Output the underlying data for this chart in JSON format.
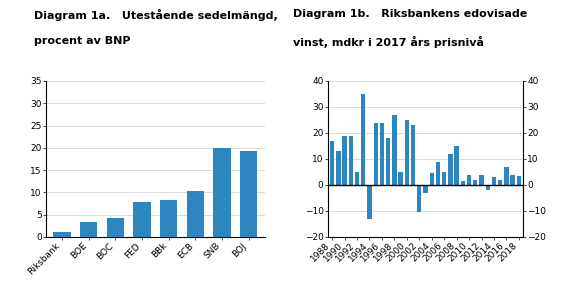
{
  "chart1a": {
    "title_line1": "Diagram 1a.   Utestående sedelmängd,",
    "title_line2": "procent av BNP",
    "categories": [
      "Riksbank",
      "BOE",
      "BOC",
      "FED",
      "BBk",
      "ECB",
      "SNB",
      "BOJ"
    ],
    "values": [
      1.1,
      3.3,
      4.3,
      7.9,
      8.4,
      10.4,
      20.0,
      19.2
    ],
    "bar_color": "#2e86c1",
    "ylim": [
      0,
      35
    ],
    "yticks": [
      0,
      5,
      10,
      15,
      20,
      25,
      30,
      35
    ]
  },
  "chart1b": {
    "title_line1": "Diagram 1b.   Riksbankens edovisade",
    "title_line2": "vinst, mdkr i 2017 års prisnivå",
    "years": [
      1988,
      1989,
      1990,
      1991,
      1992,
      1993,
      1994,
      1995,
      1996,
      1997,
      1998,
      1999,
      2000,
      2001,
      2002,
      2003,
      2004,
      2005,
      2006,
      2007,
      2008,
      2009,
      2010,
      2011,
      2012,
      2013,
      2014,
      2015,
      2016,
      2017,
      2018
    ],
    "values": [
      17,
      13,
      19,
      19,
      5,
      35,
      -13,
      24,
      24,
      18,
      27,
      5,
      25,
      23,
      -10.5,
      -3,
      4.5,
      9,
      5,
      12,
      15,
      1.5,
      4,
      2,
      4,
      -2,
      3,
      2,
      7,
      4,
      3.5
    ],
    "bar_color": "#2e86c1",
    "ylim": [
      -20,
      40
    ],
    "yticks": [
      -20,
      -10,
      0,
      10,
      20,
      30,
      40
    ],
    "zero_line_color": "#000000"
  },
  "background_color": "#ffffff",
  "title_fontsize": 8,
  "tick_fontsize": 6.5,
  "bar_color": "#2e86c1"
}
